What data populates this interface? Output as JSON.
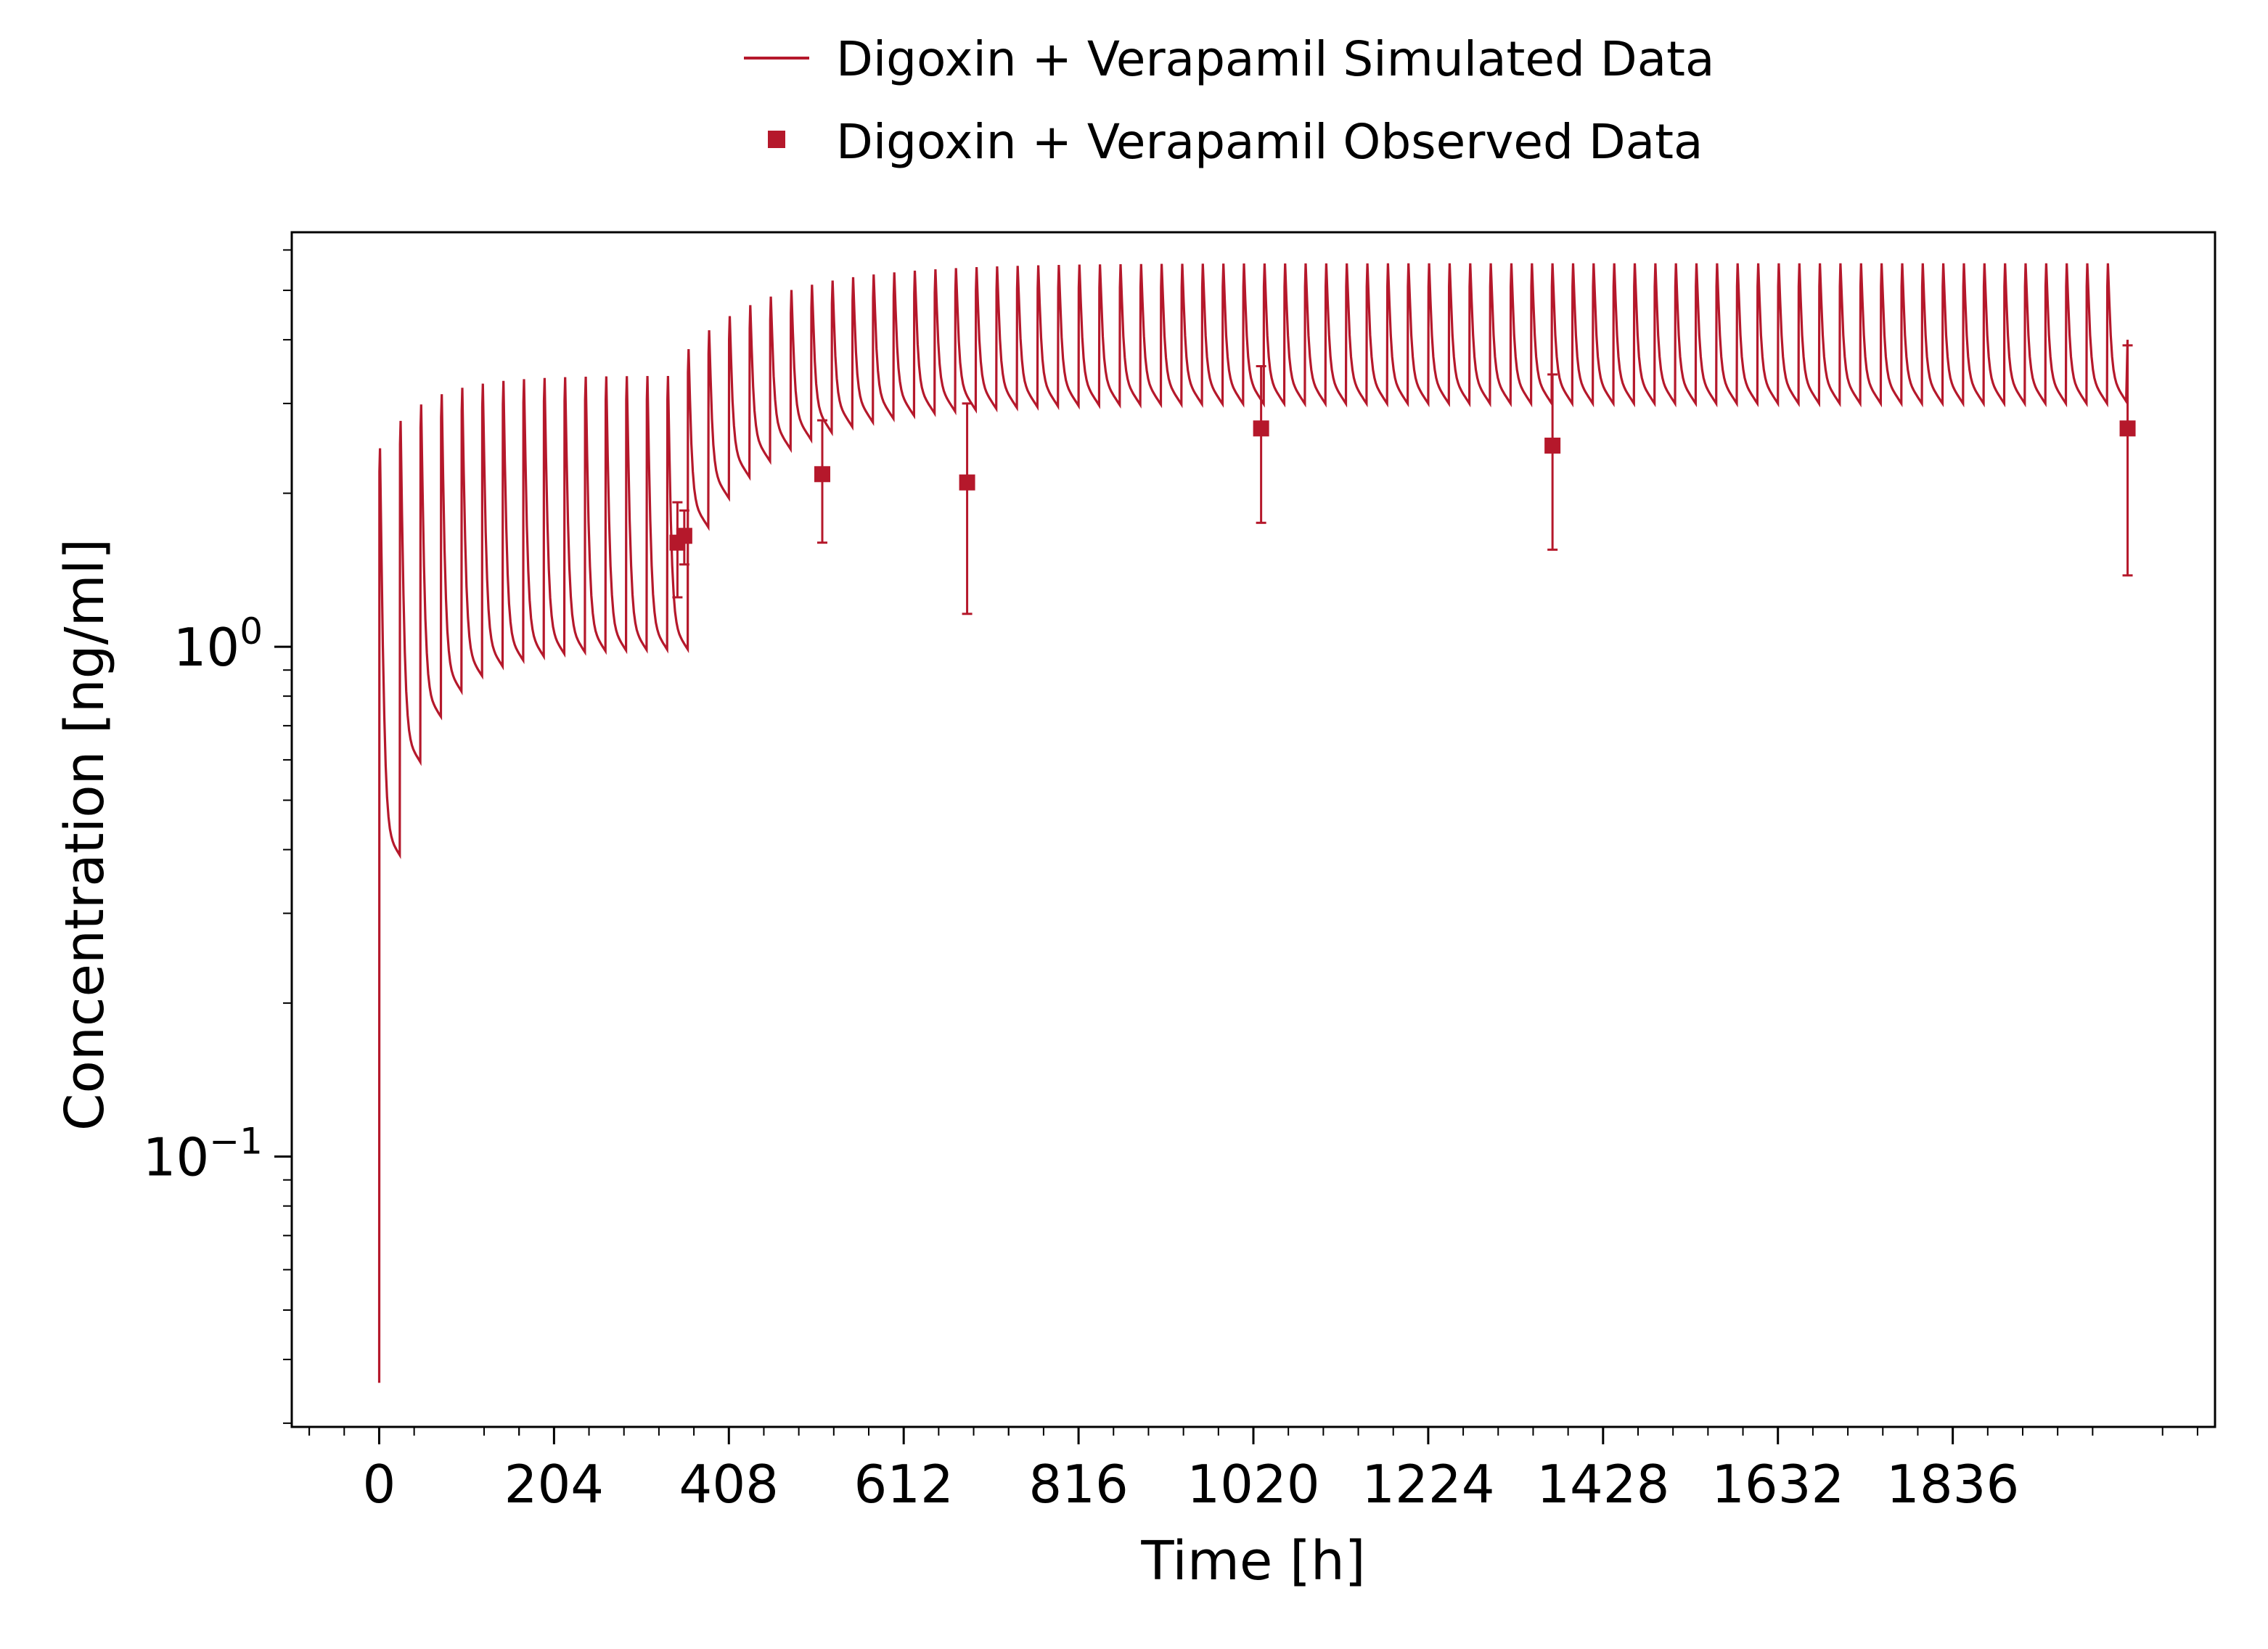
{
  "colors": {
    "series": "#b5182b",
    "axis": "#000000",
    "background": "#ffffff"
  },
  "legend": {
    "placement": "top-center",
    "items": [
      {
        "label": "Digoxin + Verapamil Simulated Data",
        "kind": "line"
      },
      {
        "label": "Digoxin + Verapamil Observed Data",
        "kind": "marker"
      }
    ]
  },
  "chart_data": {
    "type": "line",
    "xlabel": "Time [h]",
    "ylabel": "Concentration [ng/ml]",
    "xlim": [
      -102,
      2142
    ],
    "ylim": [
      0.0295,
      6.5
    ],
    "yscale": "log",
    "grid": false,
    "x_ticks": [
      0,
      204,
      408,
      612,
      816,
      1020,
      1224,
      1428,
      1632,
      1836
    ],
    "y_ticks": [
      {
        "value": 0.1,
        "base": "10",
        "exp": "−1"
      },
      {
        "value": 1.0,
        "base": "10",
        "exp": "0"
      }
    ],
    "simulated": {
      "name": "Digoxin + Verapamil Simulated Data",
      "dose_interval_h": 24,
      "phase1": {
        "t_start": 0,
        "t_end": 346,
        "peak_first": 2.45,
        "trough_first": 0.39,
        "peak_ss": 3.4,
        "trough_ss": 0.99,
        "t_half_accum": 40
      },
      "phase2": {
        "t_start": 346,
        "t_end": 2040,
        "peak_ss": 5.65,
        "trough_ss": 3.0,
        "t_half_accum": 80
      },
      "initial_value": 0.036,
      "final_value": 4.0
    },
    "observed": {
      "name": "Digoxin + Verapamil Observed Data",
      "points": [
        {
          "x": 348,
          "y": 1.6,
          "y_low": 1.25,
          "y_high": 1.92
        },
        {
          "x": 356,
          "y": 1.65,
          "y_low": 1.45,
          "y_high": 1.85
        },
        {
          "x": 517,
          "y": 2.18,
          "y_low": 1.6,
          "y_high": 2.78
        },
        {
          "x": 686,
          "y": 2.1,
          "y_low": 1.16,
          "y_high": 3.0
        },
        {
          "x": 1029,
          "y": 2.68,
          "y_low": 1.75,
          "y_high": 3.55
        },
        {
          "x": 1369,
          "y": 2.48,
          "y_low": 1.55,
          "y_high": 3.42
        },
        {
          "x": 2040,
          "y": 2.68,
          "y_low": 1.38,
          "y_high": 3.9
        }
      ]
    }
  }
}
